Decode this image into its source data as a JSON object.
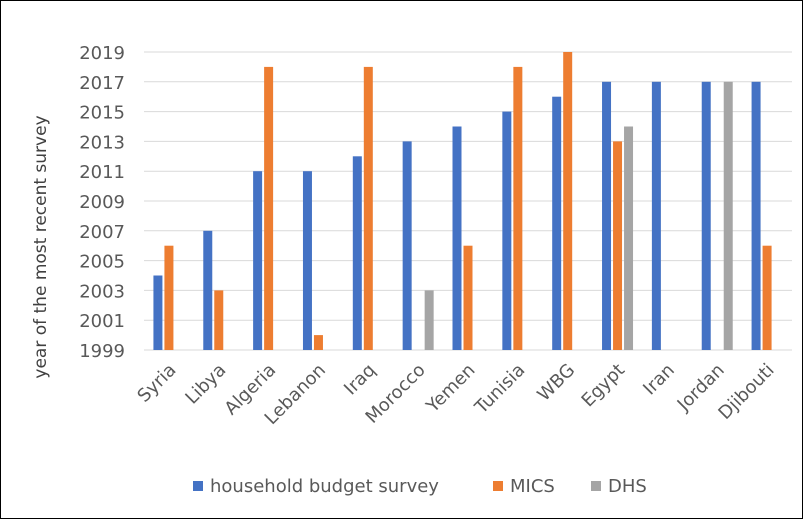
{
  "chart_data": {
    "type": "bar",
    "title": "",
    "xlabel": "",
    "ylabel": "year of the most recent survey",
    "ylim": [
      1999,
      2020
    ],
    "yticks": [
      1999,
      2001,
      2003,
      2005,
      2007,
      2009,
      2011,
      2013,
      2015,
      2017,
      2019
    ],
    "grid": true,
    "legend_position": "bottom",
    "categories": [
      "Syria",
      "Libya",
      "Algeria",
      "Lebanon",
      "Iraq",
      "Morocco",
      "Yemen",
      "Tunisia",
      "WBG",
      "Egypt",
      "Iran",
      "Jordan",
      "Djibouti"
    ],
    "series": [
      {
        "name": "household budget survey",
        "color": "#4472c4",
        "values": [
          2004,
          2007,
          2011,
          2011,
          2012,
          2013,
          2014,
          2015,
          2016,
          2017,
          2017,
          2017,
          2017
        ]
      },
      {
        "name": "MICS",
        "color": "#ed7d31",
        "values": [
          2006,
          2003,
          2018,
          2000,
          2018,
          null,
          2006,
          2018,
          2019,
          2013,
          null,
          null,
          2006
        ]
      },
      {
        "name": "DHS",
        "color": "#a5a5a5",
        "values": [
          null,
          null,
          null,
          null,
          null,
          2003,
          null,
          null,
          null,
          2014,
          null,
          2017,
          null
        ]
      }
    ]
  }
}
